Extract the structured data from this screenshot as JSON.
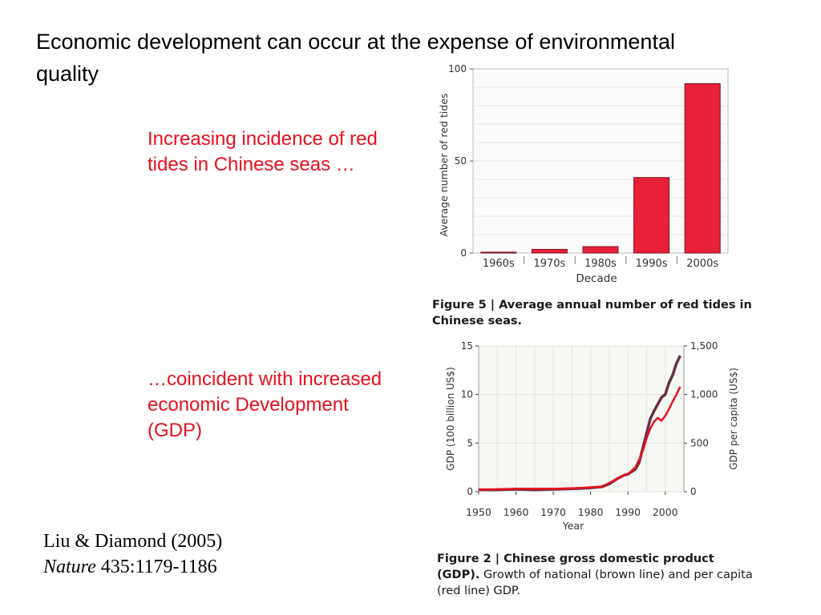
{
  "slide": {
    "title": "Economic development can occur at the expense of environmental quality",
    "note_red_tides": "Increasing incidence of red tides in Chinese seas …",
    "note_gdp": "…coincident with increased economic Development (GDP)",
    "citation_line1": "Liu & Diamond (2005)",
    "citation_journal": "Nature",
    "citation_ref": " 435:1179-1186"
  },
  "figure5": {
    "caption_label": "Figure 5 | ",
    "caption_text": "Average annual number of red tides in Chinese seas."
  },
  "figure2": {
    "caption_label": "Figure 2 | Chinese gross domestic product (GDP).",
    "caption_text": "Growth of national (brown line) and per capita (red line) GDP."
  },
  "colors": {
    "red": "#e8101e",
    "bar_fill": "#e8203a",
    "brown": "#6a2f45",
    "line_red": "#e8101e"
  },
  "chart_data": [
    {
      "type": "bar",
      "categories": [
        "1960s",
        "1970s",
        "1980s",
        "1990s",
        "2000s"
      ],
      "values": [
        0.5,
        2,
        3.5,
        41,
        92
      ],
      "title": "",
      "xlabel": "Decade",
      "ylabel": "Average number of red tides",
      "ylim": [
        0,
        100
      ],
      "yticks": [
        0,
        50,
        100
      ],
      "grid": true
    },
    {
      "type": "line",
      "xlabel": "Year",
      "ylabel": "GDP (100 billion US$)",
      "y2label": "GDP per capita (US$)",
      "xlim": [
        1950,
        2005
      ],
      "ylim": [
        0,
        15
      ],
      "y2lim": [
        0,
        1500
      ],
      "xticks": [
        1950,
        1960,
        1970,
        1980,
        1990,
        2000
      ],
      "yticks": [
        0,
        5,
        10,
        15
      ],
      "y2ticks": [
        "0",
        "500",
        "1,000",
        "1,500"
      ],
      "y2tick_values": [
        0,
        500,
        1000,
        1500
      ],
      "grid": true,
      "series": [
        {
          "axis": "left",
          "x": [
            1950,
            1955,
            1960,
            1965,
            1970,
            1975,
            1978,
            1980,
            1983,
            1985,
            1987,
            1989,
            1990,
            1992,
            1993,
            1994,
            1995,
            1996,
            1997,
            1998,
            1999,
            2000,
            2001,
            2002,
            2003,
            2004
          ],
          "values": [
            0.2,
            0.2,
            0.25,
            0.2,
            0.25,
            0.3,
            0.35,
            0.4,
            0.5,
            0.8,
            1.3,
            1.7,
            1.8,
            2.3,
            3.0,
            4.5,
            6.0,
            7.5,
            8.3,
            9.0,
            9.7,
            10.0,
            11.2,
            12.0,
            13.2,
            14.0
          ]
        },
        {
          "axis": "right",
          "x": [
            1950,
            1955,
            1960,
            1965,
            1970,
            1975,
            1978,
            1980,
            1983,
            1985,
            1987,
            1989,
            1990,
            1992,
            1993,
            1994,
            1995,
            1996,
            1997,
            1998,
            1999,
            2000,
            2001,
            2002,
            2003,
            2004
          ],
          "values": [
            20,
            25,
            30,
            30,
            30,
            35,
            40,
            45,
            50,
            90,
            130,
            170,
            180,
            250,
            330,
            420,
            550,
            650,
            720,
            760,
            730,
            780,
            850,
            930,
            1000,
            1080
          ]
        }
      ]
    }
  ]
}
